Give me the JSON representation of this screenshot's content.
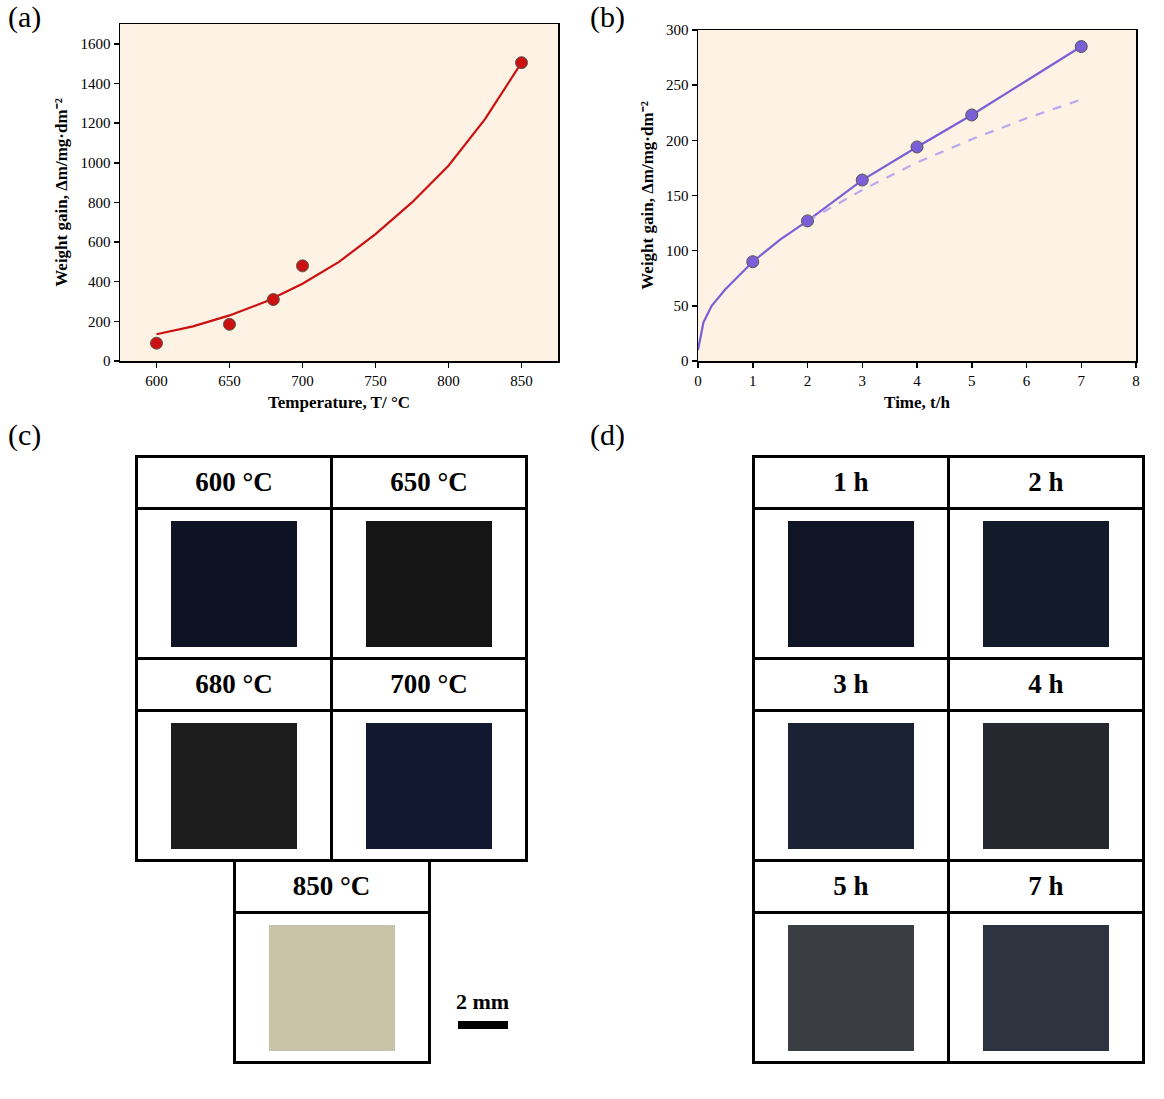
{
  "chart_data": [
    {
      "type": "scatter",
      "title": "(a)",
      "x_label": "Temperature, T/ °C",
      "y_label": "Weight gain, Δm/mg·dm⁻²",
      "xlim": [
        575,
        875
      ],
      "xticks": [
        600,
        650,
        700,
        750,
        800,
        850
      ],
      "ylim": [
        0,
        1700
      ],
      "yticks": [
        0,
        200,
        400,
        600,
        800,
        1000,
        1200,
        1400,
        1600
      ],
      "grid": false,
      "series": [
        {
          "type": "scatter",
          "marker": "circle",
          "color": "#cc1111",
          "x": [
            600,
            650,
            680,
            700,
            850
          ],
          "values": [
            90,
            185,
            310,
            480,
            1505
          ]
        },
        {
          "type": "line",
          "line_style": "solid",
          "color": "#cc1111",
          "x": [
            600,
            625,
            650,
            675,
            700,
            725,
            750,
            775,
            800,
            825,
            850
          ],
          "values": [
            135,
            175,
            230,
            300,
            390,
            500,
            640,
            800,
            985,
            1220,
            1505
          ]
        }
      ]
    },
    {
      "type": "scatter",
      "title": "(b)",
      "x_label": "Time, t/h",
      "y_label": "Weight gain, Δm/mg·dm⁻²",
      "xlim": [
        0,
        8
      ],
      "xticks": [
        0,
        1,
        2,
        3,
        4,
        5,
        6,
        7,
        8
      ],
      "ylim": [
        0,
        300
      ],
      "yticks": [
        0,
        50,
        100,
        150,
        200,
        250,
        300
      ],
      "grid": false,
      "series": [
        {
          "type": "scatter",
          "marker": "circle",
          "color": "#7b5fd6",
          "x": [
            1,
            2,
            3,
            4,
            5,
            7
          ],
          "values": [
            90,
            127,
            164,
            194,
            223,
            285
          ]
        },
        {
          "type": "line",
          "line_style": "solid",
          "color": "#7b5fd6",
          "x": [
            0,
            0.1,
            0.25,
            0.5,
            1,
            1.5,
            2,
            3,
            4,
            5,
            6,
            7
          ],
          "values": [
            10,
            35,
            50,
            65,
            90,
            110,
            127,
            164,
            194,
            223,
            254,
            285
          ]
        },
        {
          "type": "line",
          "line_style": "dash",
          "color": "#b8a8f0",
          "x": [
            2,
            3,
            4,
            5,
            6,
            7
          ],
          "values": [
            127,
            155,
            180,
            201,
            220,
            237
          ]
        }
      ]
    }
  ],
  "photo_panels": [
    {
      "label": "(c)",
      "scale_bar": "2 mm",
      "cells": [
        {
          "label": "600 °C",
          "color": "#0d1322"
        },
        {
          "label": "650 °C",
          "color": "#151515"
        },
        {
          "label": "680 °C",
          "color": "#1d1d1d"
        },
        {
          "label": "700 °C",
          "color": "#121830"
        },
        {
          "label": "850 °C",
          "color": "#c9c3a8"
        }
      ]
    },
    {
      "label": "(d)",
      "cells": [
        {
          "label": "1 h",
          "color": "#0f1525"
        },
        {
          "label": "2 h",
          "color": "#131a2b"
        },
        {
          "label": "3 h",
          "color": "#1a2233"
        },
        {
          "label": "4 h",
          "color": "#25282f"
        },
        {
          "label": "5 h",
          "color": "#3a3d44"
        },
        {
          "label": "7 h",
          "color": "#2d3440"
        }
      ]
    }
  ]
}
